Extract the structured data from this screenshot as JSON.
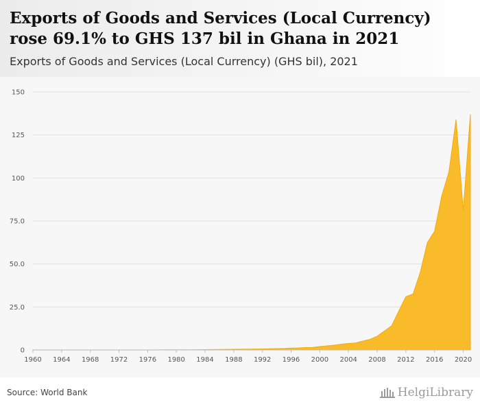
{
  "header": {
    "title": "Exports of Goods and Services (Local Currency) rose 69.1% to GHS 137 bil in Ghana in 2021",
    "subtitle": "Exports of Goods and Services (Local Currency) (GHS bil), 2021"
  },
  "footer": {
    "source": "Source: World Bank",
    "logo_text": "HelgiLibrary"
  },
  "colors": {
    "area_fill": "#f9bb2a",
    "area_stroke": "#f2ab12",
    "grid": "#e2e2e2",
    "header_bg": "#ececec"
  },
  "chart_data": {
    "type": "area",
    "title": "Exports of Goods and Services (Local Currency) rose 69.1% to GHS 137 bil in Ghana in 2021",
    "subtitle": "Exports of Goods and Services (Local Currency) (GHS bil), 2021",
    "xlabel": "",
    "ylabel": "",
    "xlim": [
      1960,
      2021
    ],
    "ylim": [
      0,
      150
    ],
    "grid": true,
    "legend": "none",
    "x_ticks": [
      1960,
      1964,
      1968,
      1972,
      1976,
      1980,
      1984,
      1988,
      1992,
      1996,
      2000,
      2004,
      2008,
      2012,
      2016,
      2020
    ],
    "y_ticks": [
      0,
      25,
      50,
      75,
      100,
      125,
      150
    ],
    "y_tick_labels": [
      "0",
      "25.0",
      "50.0",
      "75.0",
      "100",
      "125",
      "150"
    ],
    "series": [
      {
        "x": [
          1960,
          1961,
          1962,
          1963,
          1964,
          1965,
          1966,
          1967,
          1968,
          1969,
          1970,
          1971,
          1972,
          1973,
          1974,
          1975,
          1976,
          1977,
          1978,
          1979,
          1980,
          1981,
          1982,
          1983,
          1984,
          1985,
          1986,
          1987,
          1988,
          1989,
          1990,
          1991,
          1992,
          1993,
          1994,
          1995,
          1996,
          1997,
          1998,
          1999,
          2000,
          2001,
          2002,
          2003,
          2004,
          2005,
          2006,
          2007,
          2008,
          2009,
          2010,
          2011,
          2012,
          2013,
          2014,
          2015,
          2016,
          2017,
          2018,
          2019,
          2020,
          2021
        ],
        "values": [
          0.03,
          0.03,
          0.03,
          0.03,
          0.03,
          0.03,
          0.03,
          0.03,
          0.04,
          0.04,
          0.04,
          0.04,
          0.05,
          0.05,
          0.06,
          0.06,
          0.06,
          0.07,
          0.08,
          0.1,
          0.1,
          0.1,
          0.1,
          0.15,
          0.2,
          0.25,
          0.3,
          0.35,
          0.4,
          0.45,
          0.5,
          0.55,
          0.6,
          0.7,
          0.8,
          0.9,
          1.1,
          1.2,
          1.4,
          1.5,
          2.0,
          2.4,
          2.8,
          3.4,
          3.8,
          4.1,
          5.2,
          6.2,
          8.0,
          11.0,
          14.0,
          22.5,
          31.0,
          32.5,
          45.0,
          62.5,
          69.0,
          89.5,
          103.5,
          134.0,
          81.0,
          137.0
        ]
      }
    ]
  }
}
